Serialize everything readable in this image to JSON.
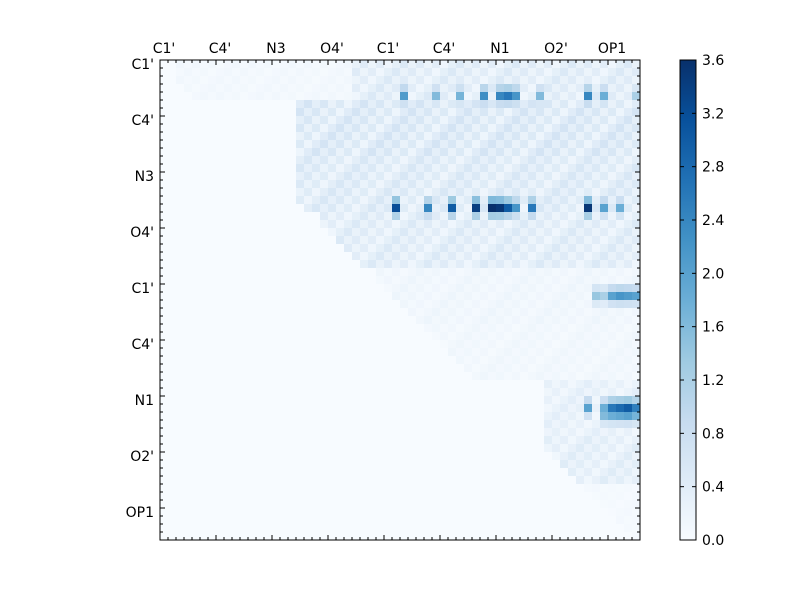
{
  "chart_data": {
    "type": "heatmap",
    "title": "",
    "colormap": "Blues",
    "matrix_size": 60,
    "top_tick_labels": [
      "C1'",
      "C4'",
      "N3",
      "O4'",
      "C1'",
      "C4'",
      "N1",
      "O2'",
      "OP1"
    ],
    "left_tick_labels": [
      "C1'",
      "C4'",
      "N3",
      "O4'",
      "C1'",
      "C4'",
      "N1",
      "O2'",
      "OP1"
    ],
    "label_every": 7,
    "colorbar": {
      "min": 0.0,
      "max": 3.6,
      "ticks": [
        "0.0",
        "0.4",
        "0.8",
        "1.2",
        "1.6",
        "2.0",
        "2.4",
        "2.8",
        "3.2",
        "3.6"
      ]
    },
    "block_levels": [
      {
        "rows": [
          0,
          5
        ],
        "cols": [
          2,
          27
        ],
        "level": 0.08
      },
      {
        "rows": [
          0,
          5
        ],
        "cols": [
          24,
          59
        ],
        "level": 0.35
      },
      {
        "rows": [
          5,
          12
        ],
        "cols": [
          17,
          59
        ],
        "level": 0.45
      },
      {
        "rows": [
          12,
          19
        ],
        "cols": [
          17,
          59
        ],
        "level": 0.4
      },
      {
        "rows": [
          19,
          26
        ],
        "cols": [
          20,
          59
        ],
        "level": 0.35
      },
      {
        "rows": [
          26,
          33
        ],
        "cols": [
          27,
          59
        ],
        "level": 0.12
      },
      {
        "rows": [
          33,
          40
        ],
        "cols": [
          33,
          59
        ],
        "level": 0.1
      },
      {
        "rows": [
          40,
          47
        ],
        "cols": [
          48,
          59
        ],
        "level": 0.25
      },
      {
        "rows": [
          47,
          53
        ],
        "cols": [
          48,
          59
        ],
        "level": 0.3
      },
      {
        "rows": [
          53,
          60
        ],
        "cols": [
          53,
          59
        ],
        "level": 0.05
      }
    ],
    "hot_rows": [
      {
        "row": 4,
        "cols": [
          30,
          34,
          37,
          40,
          42,
          43,
          44,
          47,
          53,
          55,
          59
        ],
        "values": [
          2.1,
          1.6,
          1.7,
          2.3,
          2.4,
          2.6,
          2.2,
          1.6,
          2.4,
          1.8,
          1.2
        ]
      },
      {
        "row": 18,
        "cols": [
          29,
          33,
          36,
          39,
          41,
          42,
          43,
          44,
          46,
          53,
          55,
          57
        ],
        "values": [
          3.2,
          2.4,
          3.0,
          3.4,
          3.6,
          3.5,
          3.0,
          2.2,
          2.6,
          3.5,
          2.0,
          1.8
        ]
      },
      {
        "row": 29,
        "cols": [
          54,
          55,
          56,
          57,
          58,
          59
        ],
        "values": [
          1.4,
          1.2,
          2.0,
          2.2,
          2.1,
          2.0
        ]
      },
      {
        "row": 43,
        "cols": [
          53,
          55,
          56,
          57,
          58,
          59
        ],
        "values": [
          2.0,
          1.8,
          2.6,
          2.8,
          3.0,
          2.5
        ]
      },
      {
        "row": 44,
        "cols": [
          55,
          56,
          57,
          58,
          59
        ],
        "values": [
          1.6,
          1.8,
          1.9,
          2.0,
          1.7
        ]
      }
    ]
  }
}
